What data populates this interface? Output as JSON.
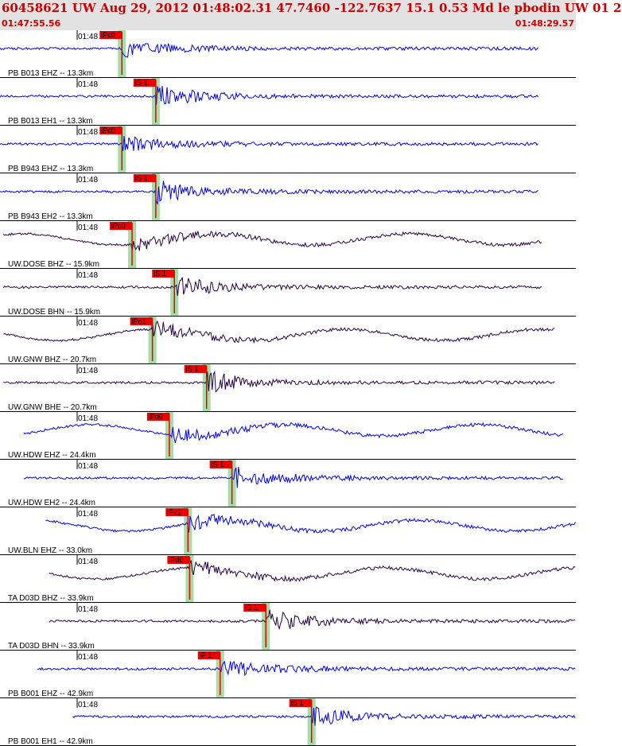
{
  "header": {
    "title": "60458621 UW Aug 29, 2012 01:48:02.31    47.7460 -122.7637 15.1 0.53 Md le pbodin UW 01    2",
    "time_start": "01:47:55.56",
    "time_end": "01:48:29.57"
  },
  "colors": {
    "header_bg": "#e2e2e2",
    "header_text": "#c80000",
    "trace_blue": "#0000ee",
    "trace_dark": "#230046",
    "pick_fill": "#ee0000",
    "pick_window": "#a6dca6",
    "separator": "#000000"
  },
  "chart_data": {
    "type": "line",
    "x_range_seconds": [
      0,
      34.01
    ],
    "traces": [
      {
        "label": "PB B013 EHZ -- 13.3km",
        "tick": "01:48",
        "pick": "iPc0",
        "color": "blue",
        "start": 0.0,
        "end": 31.8,
        "pick_time": 7.2,
        "cycle": false
      },
      {
        "label": "PB B013 EH1 -- 13.3km",
        "tick": "01:48",
        "pick": "iS 1",
        "color": "blue",
        "start": 0.0,
        "end": 31.8,
        "pick_time": 9.2,
        "cycle": false
      },
      {
        "label": "PB B943 EHZ -- 13.3km",
        "tick": "01:48",
        "pick": "iPc0",
        "color": "blue",
        "start": 0.0,
        "end": 31.8,
        "pick_time": 7.2,
        "cycle": false
      },
      {
        "label": "PB B943 EH2 -- 13.3km",
        "tick": "01:48",
        "pick": "iS 1",
        "color": "blue",
        "start": 0.0,
        "end": 31.8,
        "pick_time": 9.2,
        "cycle": false
      },
      {
        "label": "UW.DOSE BHZ -- 15.9km",
        "tick": "01:48",
        "pick": "iPc0",
        "color": "dark",
        "start": 0.2,
        "end": 32.0,
        "pick_time": 7.8,
        "cycle": true
      },
      {
        "label": "UW.DOSE BHN -- 15.9km",
        "tick": "01:48",
        "pick": "iS 1",
        "color": "dark",
        "start": 0.2,
        "end": 32.0,
        "pick_time": 10.3,
        "cycle": false
      },
      {
        "label": "UW.GNW BHZ -- 20.7km",
        "tick": "01:48",
        "pick": "iPd1",
        "color": "dark",
        "start": 0.2,
        "end": 32.8,
        "pick_time": 9.0,
        "cycle": true
      },
      {
        "label": "UW.GNW BHE -- 20.7km",
        "tick": "01:48",
        "pick": "iS 1",
        "color": "dark",
        "start": 0.2,
        "end": 32.8,
        "pick_time": 12.2,
        "cycle": false
      },
      {
        "label": "UW.HDW EHZ -- 24.4km",
        "tick": "01:48",
        "pick": "iPd0",
        "color": "blue",
        "start": 1.4,
        "end": 33.3,
        "pick_time": 10.0,
        "cycle": true
      },
      {
        "label": "UW.HDW EH2 -- 24.4km",
        "tick": "01:48",
        "pick": "iS 1",
        "color": "blue",
        "start": 1.4,
        "end": 33.3,
        "pick_time": 13.7,
        "cycle": false
      },
      {
        "label": "UW.BLN EHZ -- 33.0km",
        "tick": "01:48",
        "pick": "iPc1",
        "color": "blue",
        "start": 2.7,
        "end": 34.6,
        "pick_time": 11.1,
        "cycle": true
      },
      {
        "label": "TA D03D BHZ -- 33.9km",
        "tick": "01:48",
        "pick": "iPd0",
        "color": "dark",
        "start": 2.9,
        "end": 34.8,
        "pick_time": 11.2,
        "cycle": true
      },
      {
        "label": "TA D03D BHN -- 33.9km",
        "tick": "01:48",
        "pick": "iS 1",
        "color": "dark",
        "start": 2.9,
        "end": 34.8,
        "pick_time": 15.7,
        "cycle": false
      },
      {
        "label": "PB B001 EHZ -- 42.9km",
        "tick": "01:48",
        "pick": "iP 1",
        "color": "blue",
        "start": 2.2,
        "end": 36.1,
        "pick_time": 13.0,
        "cycle": false
      },
      {
        "label": "PB B001 EH1 -- 42.9km",
        "tick": "01:48",
        "pick": "iS 1",
        "color": "blue",
        "start": 4.3,
        "end": 36.1,
        "pick_time": 18.4,
        "cycle": false
      }
    ]
  }
}
